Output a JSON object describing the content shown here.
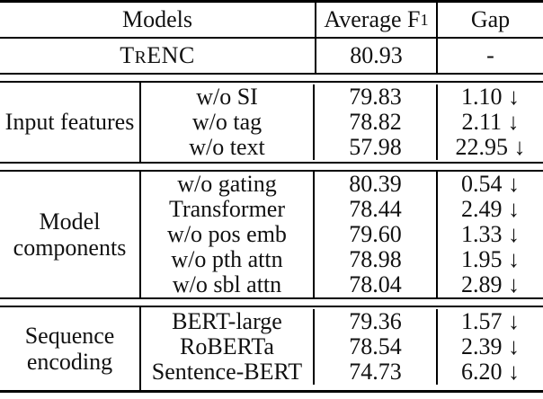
{
  "table": {
    "header": {
      "models": "Models",
      "avg_f1_text": "Average F",
      "avg_f1_sub": "1",
      "gap": "Gap"
    },
    "baseline": {
      "name_t": "T",
      "name_r": "R",
      "name_enc": "ENC",
      "f1": "80.93",
      "gap": "-"
    },
    "sections": [
      {
        "group": "Input features",
        "rows": [
          {
            "model": "w/o SI",
            "f1": "79.83",
            "gap": "1.10 ↓"
          },
          {
            "model": "w/o tag",
            "f1": "78.82",
            "gap": "2.11 ↓"
          },
          {
            "model": "w/o text",
            "f1": "57.98",
            "gap": "22.95 ↓"
          }
        ]
      },
      {
        "group": "Model components",
        "rows": [
          {
            "model": "w/o gating",
            "f1": "80.39",
            "gap": "0.54 ↓"
          },
          {
            "model": "Transformer",
            "f1": "78.44",
            "gap": "2.49 ↓"
          },
          {
            "model": "w/o pos emb",
            "f1": "79.60",
            "gap": "1.33 ↓"
          },
          {
            "model": "w/o pth attn",
            "f1": "78.98",
            "gap": "1.95 ↓"
          },
          {
            "model": "w/o sbl attn",
            "f1": "78.04",
            "gap": "2.89 ↓"
          }
        ]
      },
      {
        "group": "Sequence encoding",
        "rows": [
          {
            "model": "BERT-large",
            "f1": "79.36",
            "gap": "1.57 ↓"
          },
          {
            "model": "RoBERTa",
            "f1": "78.54",
            "gap": "2.39 ↓"
          },
          {
            "model": "Sentence-BERT",
            "f1": "74.73",
            "gap": "6.20 ↓"
          }
        ]
      }
    ],
    "colors": {
      "text": "#111111",
      "rule": "#000000",
      "background": "#ffffff"
    }
  }
}
